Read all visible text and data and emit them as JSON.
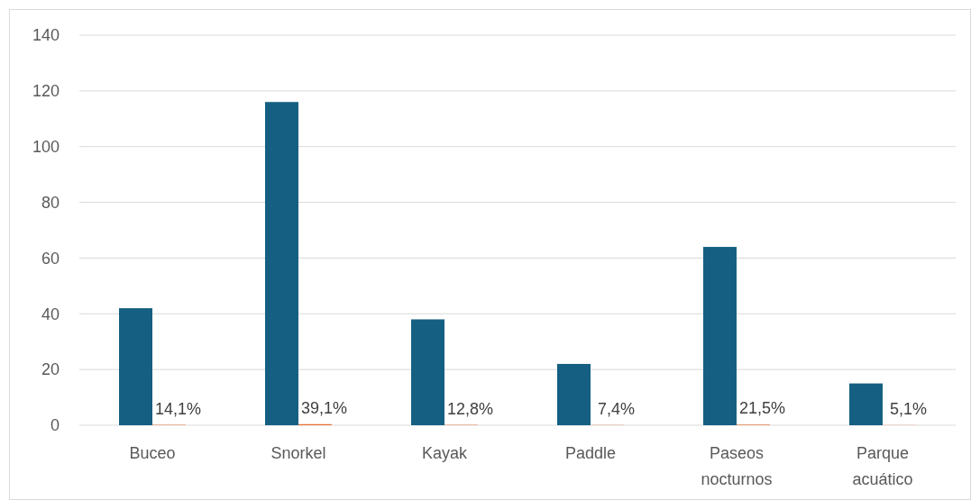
{
  "chart_data": {
    "type": "bar",
    "categories": [
      "Buceo",
      "Snorkel",
      "Kayak",
      "Paddle",
      "Paseos nocturnos",
      "Parque acuático"
    ],
    "series": [
      {
        "color": "#156082",
        "values": [
          42,
          116,
          38,
          22,
          64,
          15
        ]
      },
      {
        "color": "#e97132",
        "values": [
          0.141,
          0.391,
          0.128,
          0.074,
          0.215,
          0.051
        ],
        "value_labels": [
          "14,1%",
          "39,1%",
          "12,8%",
          "7,4%",
          "21,5%",
          "5,1%"
        ]
      }
    ],
    "ylim": [
      0,
      140
    ],
    "yticks": [
      0,
      20,
      40,
      60,
      80,
      100,
      120,
      140
    ],
    "grid": "y"
  }
}
